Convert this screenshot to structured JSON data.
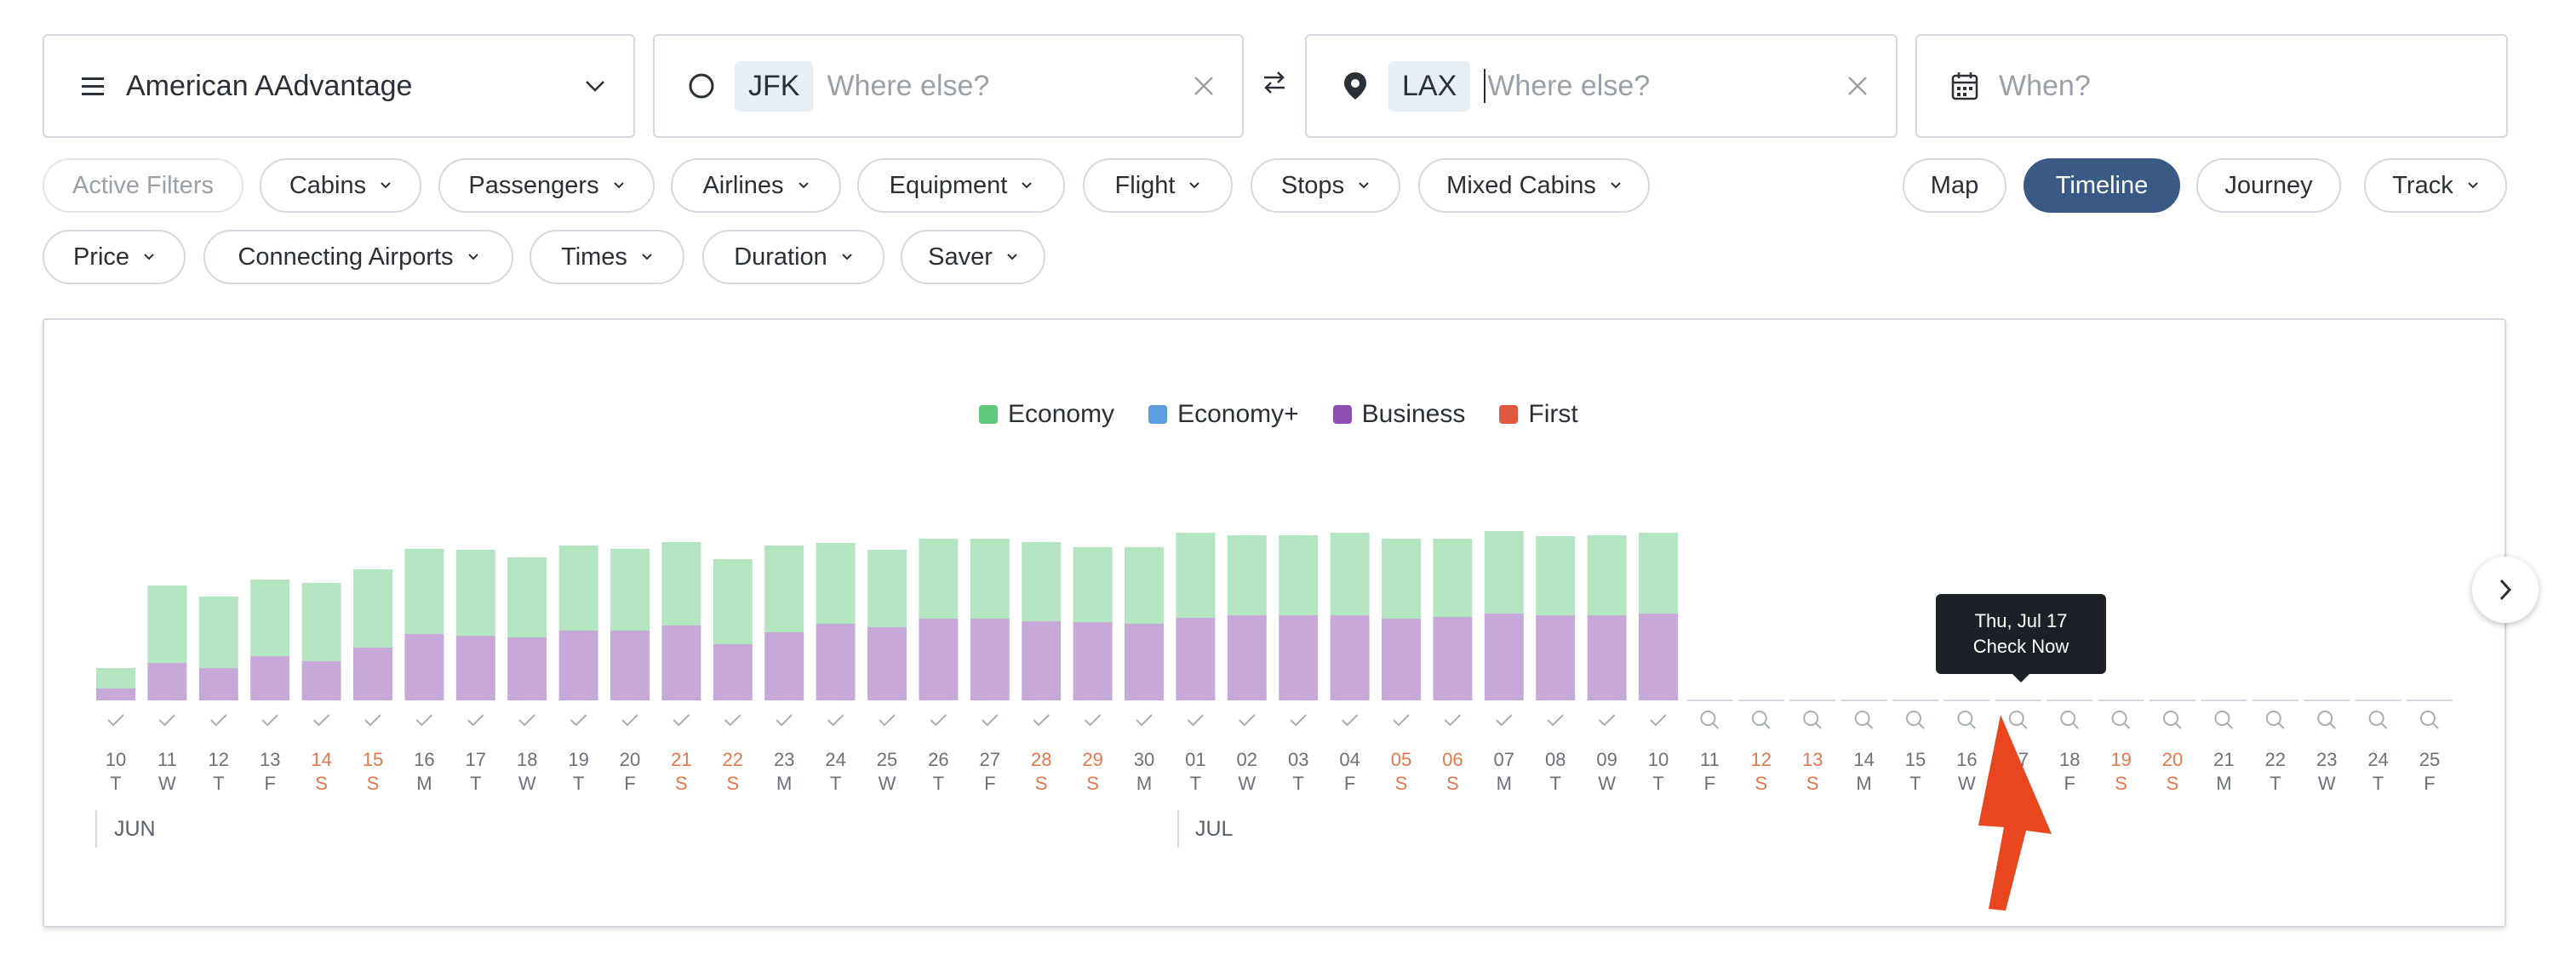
{
  "search": {
    "program": "American AAdvantage",
    "origin_code": "JFK",
    "origin_placeholder": "Where else?",
    "destination_code": "LAX",
    "destination_placeholder": "Where else?",
    "when_placeholder": "When?"
  },
  "filters_row1": [
    "Active Filters",
    "Cabins",
    "Passengers",
    "Airlines",
    "Equipment",
    "Flight",
    "Stops",
    "Mixed Cabins"
  ],
  "filters_row2": [
    "Price",
    "Connecting Airports",
    "Times",
    "Duration",
    "Saver"
  ],
  "views": [
    {
      "label": "Map",
      "active": false
    },
    {
      "label": "Timeline",
      "active": true
    },
    {
      "label": "Journey",
      "active": false
    },
    {
      "label": "Track",
      "active": false
    }
  ],
  "tooltip": {
    "line1": "Thu, Jul 17",
    "line2": "Check Now"
  },
  "colors": {
    "economy": "#5ec97a",
    "economy_plus": "#5b9ee0",
    "business": "#8e4fb5",
    "first": "#e0593e",
    "economy_bar": "#b3e6c0",
    "business_bar": "#c6a9d8",
    "weekend": "#e0784e",
    "accent": "#3a5a86",
    "arrow": "#e8461f"
  },
  "chart_data": {
    "type": "bar",
    "legend": [
      "Economy",
      "Economy+",
      "Business",
      "First"
    ],
    "months": [
      {
        "label": "JUN",
        "start_index": 0
      },
      {
        "label": "JUL",
        "start_index": 21
      }
    ],
    "days": [
      {
        "d": "10",
        "w": "T",
        "weekend": false,
        "status": "available",
        "economy": 38,
        "business": 14
      },
      {
        "d": "11",
        "w": "W",
        "weekend": false,
        "status": "available",
        "economy": 135,
        "business": 44
      },
      {
        "d": "12",
        "w": "T",
        "weekend": false,
        "status": "available",
        "economy": 122,
        "business": 38
      },
      {
        "d": "13",
        "w": "F",
        "weekend": false,
        "status": "available",
        "economy": 142,
        "business": 52
      },
      {
        "d": "14",
        "w": "S",
        "weekend": true,
        "status": "available",
        "economy": 138,
        "business": 46
      },
      {
        "d": "15",
        "w": "S",
        "weekend": true,
        "status": "available",
        "economy": 154,
        "business": 62
      },
      {
        "d": "16",
        "w": "M",
        "weekend": false,
        "status": "available",
        "economy": 178,
        "business": 78
      },
      {
        "d": "17",
        "w": "T",
        "weekend": false,
        "status": "available",
        "economy": 177,
        "business": 76
      },
      {
        "d": "18",
        "w": "W",
        "weekend": false,
        "status": "available",
        "economy": 168,
        "business": 74
      },
      {
        "d": "19",
        "w": "T",
        "weekend": false,
        "status": "available",
        "economy": 182,
        "business": 82
      },
      {
        "d": "20",
        "w": "F",
        "weekend": false,
        "status": "available",
        "economy": 178,
        "business": 82
      },
      {
        "d": "21",
        "w": "S",
        "weekend": true,
        "status": "available",
        "economy": 186,
        "business": 88
      },
      {
        "d": "22",
        "w": "S",
        "weekend": true,
        "status": "available",
        "economy": 166,
        "business": 66
      },
      {
        "d": "23",
        "w": "M",
        "weekend": false,
        "status": "available",
        "economy": 182,
        "business": 80
      },
      {
        "d": "24",
        "w": "T",
        "weekend": false,
        "status": "available",
        "economy": 185,
        "business": 90
      },
      {
        "d": "25",
        "w": "W",
        "weekend": false,
        "status": "available",
        "economy": 177,
        "business": 86
      },
      {
        "d": "26",
        "w": "T",
        "weekend": false,
        "status": "available",
        "economy": 190,
        "business": 96
      },
      {
        "d": "27",
        "w": "F",
        "weekend": false,
        "status": "available",
        "economy": 190,
        "business": 96
      },
      {
        "d": "28",
        "w": "S",
        "weekend": true,
        "status": "available",
        "economy": 186,
        "business": 93
      },
      {
        "d": "29",
        "w": "S",
        "weekend": true,
        "status": "available",
        "economy": 180,
        "business": 92
      },
      {
        "d": "30",
        "w": "M",
        "weekend": false,
        "status": "available",
        "economy": 180,
        "business": 90
      },
      {
        "d": "01",
        "w": "T",
        "weekend": false,
        "status": "available",
        "economy": 197,
        "business": 97
      },
      {
        "d": "02",
        "w": "W",
        "weekend": false,
        "status": "available",
        "economy": 194,
        "business": 100
      },
      {
        "d": "03",
        "w": "T",
        "weekend": false,
        "status": "available",
        "economy": 194,
        "business": 100
      },
      {
        "d": "04",
        "w": "F",
        "weekend": false,
        "status": "available",
        "economy": 197,
        "business": 100
      },
      {
        "d": "05",
        "w": "S",
        "weekend": true,
        "status": "available",
        "economy": 190,
        "business": 96
      },
      {
        "d": "06",
        "w": "S",
        "weekend": true,
        "status": "available",
        "economy": 190,
        "business": 98
      },
      {
        "d": "07",
        "w": "M",
        "weekend": false,
        "status": "available",
        "economy": 199,
        "business": 102
      },
      {
        "d": "08",
        "w": "T",
        "weekend": false,
        "status": "available",
        "economy": 193,
        "business": 100
      },
      {
        "d": "09",
        "w": "W",
        "weekend": false,
        "status": "available",
        "economy": 194,
        "business": 100
      },
      {
        "d": "10",
        "w": "T",
        "weekend": false,
        "status": "available",
        "economy": 197,
        "business": 102
      },
      {
        "d": "11",
        "w": "F",
        "weekend": false,
        "status": "unchecked"
      },
      {
        "d": "12",
        "w": "S",
        "weekend": true,
        "status": "unchecked"
      },
      {
        "d": "13",
        "w": "S",
        "weekend": true,
        "status": "unchecked"
      },
      {
        "d": "14",
        "w": "M",
        "weekend": false,
        "status": "unchecked"
      },
      {
        "d": "15",
        "w": "T",
        "weekend": false,
        "status": "unchecked"
      },
      {
        "d": "16",
        "w": "W",
        "weekend": false,
        "status": "unchecked"
      },
      {
        "d": "17",
        "w": "T",
        "weekend": false,
        "status": "unchecked"
      },
      {
        "d": "18",
        "w": "F",
        "weekend": false,
        "status": "unchecked"
      },
      {
        "d": "19",
        "w": "S",
        "weekend": true,
        "status": "unchecked"
      },
      {
        "d": "20",
        "w": "S",
        "weekend": true,
        "status": "unchecked"
      },
      {
        "d": "21",
        "w": "M",
        "weekend": false,
        "status": "unchecked"
      },
      {
        "d": "22",
        "w": "T",
        "weekend": false,
        "status": "unchecked"
      },
      {
        "d": "23",
        "w": "W",
        "weekend": false,
        "status": "unchecked"
      },
      {
        "d": "24",
        "w": "T",
        "weekend": false,
        "status": "unchecked"
      },
      {
        "d": "25",
        "w": "F",
        "weekend": false,
        "status": "unchecked"
      }
    ]
  }
}
